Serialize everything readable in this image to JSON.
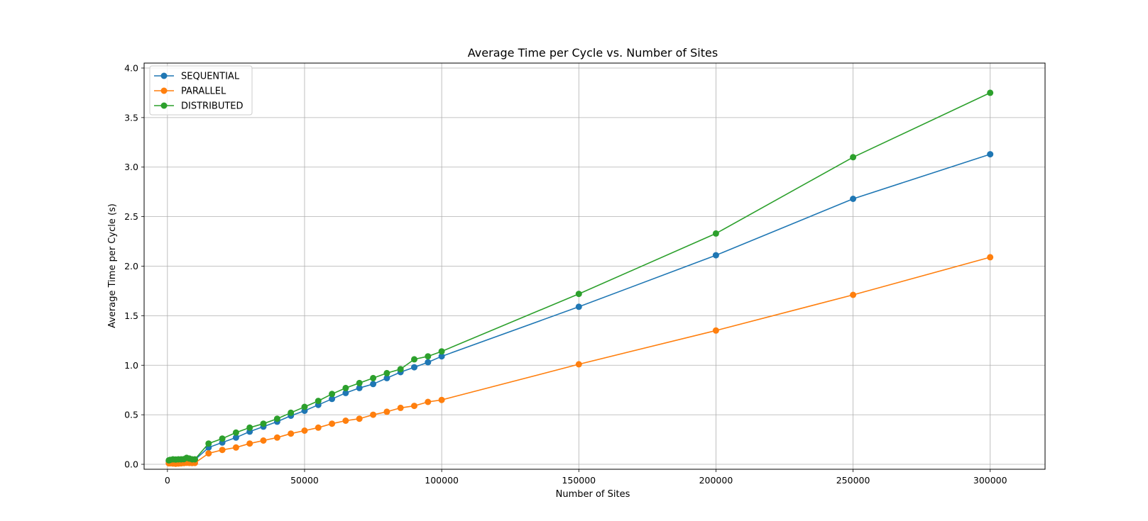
{
  "chart_data": {
    "type": "line",
    "title": "Average Time per Cycle vs. Number of Sites",
    "xlabel": "Number of Sites",
    "ylabel": "Average Time per Cycle (s)",
    "xlim": [
      -8500,
      320000
    ],
    "ylim": [
      -0.05,
      4.05
    ],
    "xticks": [
      0,
      50000,
      100000,
      150000,
      200000,
      250000,
      300000
    ],
    "yticks": [
      0.0,
      0.5,
      1.0,
      1.5,
      2.0,
      2.5,
      3.0,
      3.5,
      4.0
    ],
    "xtick_labels": [
      "0",
      "50000",
      "100000",
      "150000",
      "200000",
      "250000",
      "300000"
    ],
    "ytick_labels": [
      "0.0",
      "0.5",
      "1.0",
      "1.5",
      "2.0",
      "2.5",
      "3.0",
      "3.5",
      "4.0"
    ],
    "grid": true,
    "legend_position": "top-left",
    "x": [
      500,
      1000,
      2000,
      3000,
      4000,
      5000,
      6000,
      7000,
      8000,
      9000,
      10000,
      15000,
      20000,
      25000,
      30000,
      35000,
      40000,
      45000,
      50000,
      55000,
      60000,
      65000,
      70000,
      75000,
      80000,
      85000,
      90000,
      95000,
      100000,
      150000,
      200000,
      250000,
      300000
    ],
    "series": [
      {
        "name": "SEQUENTIAL",
        "color": "#1f77b4",
        "values": [
          0.03,
          0.035,
          0.04,
          0.04,
          0.042,
          0.045,
          0.045,
          0.05,
          0.048,
          0.045,
          0.045,
          0.17,
          0.22,
          0.27,
          0.33,
          0.38,
          0.43,
          0.49,
          0.54,
          0.6,
          0.66,
          0.72,
          0.77,
          0.81,
          0.87,
          0.93,
          0.98,
          1.03,
          1.09,
          1.59,
          2.11,
          2.68,
          3.13
        ]
      },
      {
        "name": "PARALLEL",
        "color": "#ff7f0e",
        "values": [
          0.01,
          0.01,
          0.008,
          0.006,
          0.008,
          0.01,
          0.012,
          0.015,
          0.014,
          0.013,
          0.014,
          0.11,
          0.145,
          0.17,
          0.21,
          0.24,
          0.27,
          0.31,
          0.34,
          0.37,
          0.41,
          0.44,
          0.46,
          0.5,
          0.53,
          0.57,
          0.59,
          0.63,
          0.65,
          1.01,
          1.35,
          1.71,
          2.09
        ]
      },
      {
        "name": "DISTRIBUTED",
        "color": "#2ca02c",
        "values": [
          0.04,
          0.045,
          0.05,
          0.048,
          0.05,
          0.05,
          0.052,
          0.065,
          0.058,
          0.05,
          0.05,
          0.21,
          0.26,
          0.32,
          0.37,
          0.41,
          0.46,
          0.52,
          0.58,
          0.64,
          0.71,
          0.77,
          0.82,
          0.87,
          0.92,
          0.96,
          1.06,
          1.09,
          1.14,
          1.72,
          2.33,
          3.1,
          3.75
        ]
      }
    ]
  }
}
